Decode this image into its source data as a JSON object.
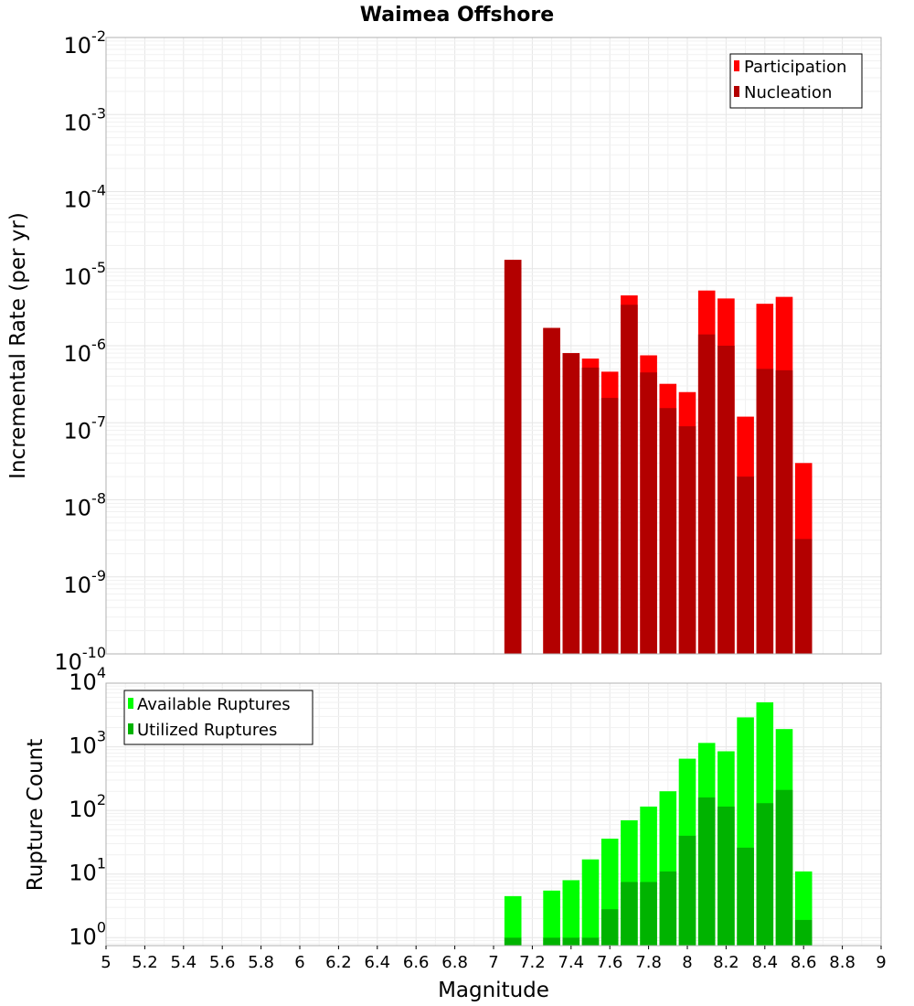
{
  "chart_data": [
    {
      "type": "bar",
      "title": "Waimea Offshore",
      "xlabel": "Magnitude",
      "ylabel": "Incremental Rate (per yr)",
      "yscale": "log",
      "ylim": [
        1e-10,
        0.01
      ],
      "xlim": [
        5,
        9
      ],
      "xticks": [
        "5",
        "5.2",
        "5.4",
        "5.6",
        "5.8",
        "6",
        "6.2",
        "6.4",
        "6.6",
        "6.8",
        "7",
        "7.2",
        "7.4",
        "7.6",
        "7.8",
        "8",
        "8.2",
        "8.4",
        "8.6",
        "8.8",
        "9"
      ],
      "grid": true,
      "legend_position": "top-right",
      "x": [
        7.1,
        7.3,
        7.4,
        7.5,
        7.6,
        7.7,
        7.8,
        7.9,
        8.0,
        8.1,
        8.2,
        8.3,
        8.4,
        8.5,
        8.6
      ],
      "series": [
        {
          "name": "Participation",
          "color": "#ff0000",
          "values": [
            1.3e-05,
            1.7e-06,
            8e-07,
            6.8e-07,
            4.6e-07,
            4.5e-06,
            7.5e-07,
            3.2e-07,
            2.5e-07,
            5.2e-06,
            4.1e-06,
            1.2e-07,
            3.5e-06,
            4.3e-06,
            3e-08
          ]
        },
        {
          "name": "Nucleation",
          "color": "#b30000",
          "values": [
            1.3e-05,
            1.7e-06,
            8e-07,
            5.2e-07,
            2.1e-07,
            3.4e-06,
            4.5e-07,
            1.55e-07,
            9e-08,
            1.4e-06,
            1e-06,
            2e-08,
            5e-07,
            4.8e-07,
            3.1e-09
          ]
        }
      ]
    },
    {
      "type": "bar",
      "title": "",
      "xlabel": "Magnitude",
      "ylabel": "Rupture Count",
      "yscale": "log",
      "ylim": [
        0.75,
        10000.0
      ],
      "xlim": [
        5,
        9
      ],
      "grid": true,
      "legend_position": "top-left",
      "x": [
        7.1,
        7.3,
        7.4,
        7.5,
        7.6,
        7.7,
        7.8,
        7.9,
        8.0,
        8.1,
        8.2,
        8.3,
        8.4,
        8.5,
        8.6
      ],
      "series": [
        {
          "name": "Available Ruptures",
          "color": "#00ff00",
          "values": [
            4.5,
            5.5,
            8,
            17,
            36,
            70,
            115,
            200,
            650,
            1150,
            850,
            2900,
            5000,
            1900,
            11
          ]
        },
        {
          "name": "Utilized Ruptures",
          "color": "#00b300",
          "values": [
            1,
            1,
            1,
            1,
            2.8,
            7.5,
            7.5,
            11,
            40,
            160,
            115,
            26,
            130,
            210,
            1.9
          ]
        }
      ]
    }
  ]
}
